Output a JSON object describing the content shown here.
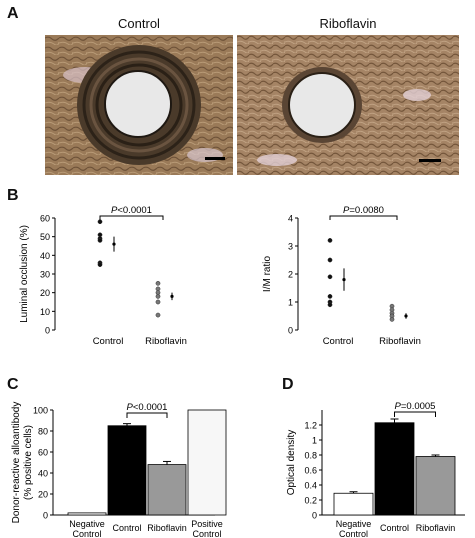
{
  "panel_letters": {
    "a": "A",
    "b": "B",
    "c": "C",
    "d": "D"
  },
  "micrographs": {
    "left_label": "Control",
    "right_label": "Riboflavin",
    "colors": {
      "tissue": "#9a7a58",
      "wall": "#3d2f22",
      "lumen": "#e8e8e8"
    }
  },
  "chart_data": [
    {
      "id": "b-left",
      "type": "scatter",
      "ylabel": "Luminal occlusion (%)",
      "ylim": [
        0,
        60
      ],
      "yticks": [
        0,
        10,
        20,
        30,
        40,
        50,
        60
      ],
      "categories": [
        "Control",
        "Riboflavin"
      ],
      "points": [
        [
          58,
          51,
          49,
          48,
          36,
          35
        ],
        [
          25,
          22,
          20,
          18,
          15,
          8
        ]
      ],
      "means": [
        46,
        18
      ],
      "errors": [
        4,
        2
      ],
      "filled": [
        true,
        false
      ],
      "significance": {
        "p_prefix": "P",
        "p_value": "<0.0001"
      }
    },
    {
      "id": "b-right",
      "type": "scatter",
      "ylabel": "I/M ratio",
      "ylim": [
        0,
        4
      ],
      "yticks": [
        0,
        1,
        2,
        3,
        4
      ],
      "categories": [
        "Control",
        "Riboflavin"
      ],
      "points": [
        [
          3.2,
          2.5,
          1.9,
          1.2,
          1.0,
          0.9
        ],
        [
          0.85,
          0.72,
          0.6,
          0.5,
          0.38
        ]
      ],
      "means": [
        1.8,
        0.5
      ],
      "errors": [
        0.4,
        0.1
      ],
      "filled": [
        true,
        false
      ],
      "significance": {
        "p_prefix": "P",
        "p_value": "=0.0080"
      }
    },
    {
      "id": "c",
      "type": "bar",
      "ylabel": "Donor-reactive alloantibody\n(% positive cells)",
      "ylim": [
        0,
        100
      ],
      "yticks": [
        0,
        20,
        40,
        60,
        80,
        100
      ],
      "categories": [
        "Negative\nControl",
        "Control",
        "Riboflavin",
        "Positive\nControl"
      ],
      "values": [
        2,
        85,
        48,
        100
      ],
      "errors": [
        0,
        2,
        3,
        0
      ],
      "colors": [
        "#ffffff",
        "#000000",
        "#999999",
        "#f7f7f7"
      ],
      "significance": {
        "p_prefix": "P",
        "p_value": "<0.0001",
        "between": [
          1,
          2
        ]
      }
    },
    {
      "id": "d",
      "type": "bar",
      "ylabel": "Optical density",
      "ylim": [
        0,
        1.4
      ],
      "yticks": [
        0,
        0.2,
        0.4,
        0.6,
        0.8,
        1.0,
        1.2
      ],
      "categories": [
        "Negative\nControl",
        "Control",
        "Riboflavin"
      ],
      "values": [
        0.29,
        1.23,
        0.78
      ],
      "errors": [
        0.02,
        0.05,
        0.02
      ],
      "colors": [
        "#ffffff",
        "#000000",
        "#999999"
      ],
      "significance": {
        "p_prefix": "P",
        "p_value": "=0.0005",
        "between": [
          1,
          2
        ]
      }
    }
  ]
}
